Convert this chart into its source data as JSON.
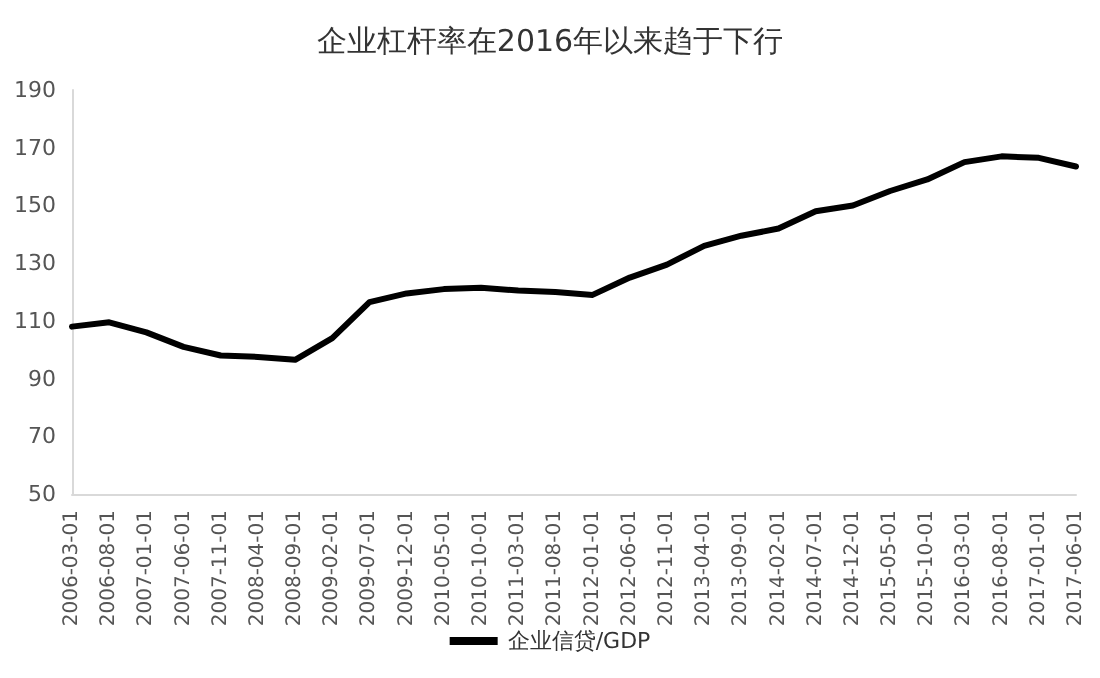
{
  "chart_data": {
    "type": "line",
    "title": "企业杠杆率在2016年以来趋于下行",
    "categories": [
      "2006-03-01",
      "2006-08-01",
      "2007-01-01",
      "2007-06-01",
      "2007-11-01",
      "2008-04-01",
      "2008-09-01",
      "2009-02-01",
      "2009-07-01",
      "2009-12-01",
      "2010-05-01",
      "2010-10-01",
      "2011-03-01",
      "2011-08-01",
      "2012-01-01",
      "2012-06-01",
      "2012-11-01",
      "2013-04-01",
      "2013-09-01",
      "2014-02-01",
      "2014-07-01",
      "2014-12-01",
      "2015-05-01",
      "2015-10-01",
      "2016-03-01",
      "2016-08-01",
      "2017-01-01",
      "2017-06-01"
    ],
    "series": [
      {
        "name": "企业信贷/GDP",
        "color": "#000000",
        "values": [
          108,
          109.5,
          106,
          101,
          98,
          97.5,
          96.5,
          104,
          116.5,
          119.5,
          121,
          121.5,
          120.5,
          120,
          119,
          125,
          129.5,
          136,
          139.5,
          142,
          148,
          150,
          155,
          159,
          165,
          167,
          166.5,
          163.5
        ]
      }
    ],
    "ylim": [
      50,
      190
    ],
    "yticks": [
      50,
      70,
      90,
      110,
      130,
      150,
      170,
      190
    ],
    "grid": false,
    "legend": "bottom",
    "marker": "none",
    "line_style": "solid"
  }
}
